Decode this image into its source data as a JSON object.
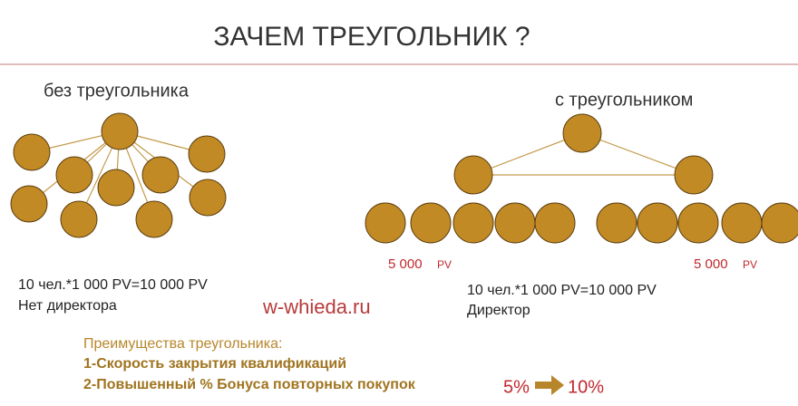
{
  "title": "ЗАЧЕМ ТРЕУГОЛЬНИК ?",
  "left": {
    "label": "без треугольника",
    "formula": "10 чел.*1 000 PV=10 000 PV",
    "note": "Нет директора"
  },
  "right": {
    "label": "с треугольником",
    "formula": "10 чел.*1 000 PV=10 000 PV",
    "note": "Директор",
    "branches": [
      {
        "amount": "5 000",
        "unit": "PV"
      },
      {
        "amount": "5 000",
        "unit": "PV"
      }
    ]
  },
  "watermark": "w-whieda.ru",
  "advantages": {
    "heading": "Преимущества треугольника:",
    "items": [
      "1-Скорость закрытия квалификаций",
      "2-Повышенный % Бонуса повторных покупок"
    ],
    "from": "5%",
    "to": "10%"
  }
}
